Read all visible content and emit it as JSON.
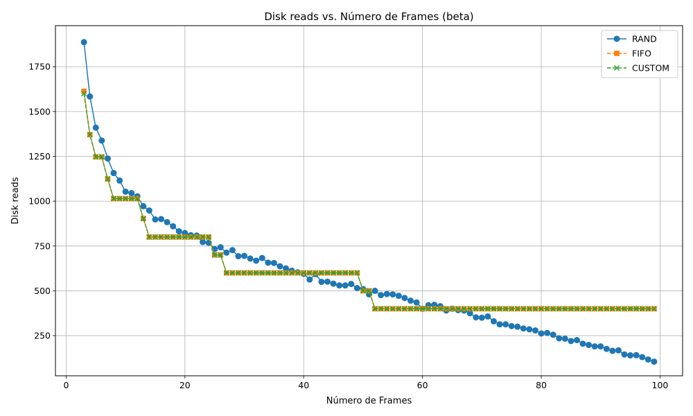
{
  "chart_data": {
    "type": "line",
    "title": "Disk reads vs. Número de Frames (beta)",
    "xlabel": "Número de Frames",
    "ylabel": "Disk reads",
    "xlim": [
      -1.8,
      103.8
    ],
    "ylim": [
      26,
      1979
    ],
    "xticks": [
      0,
      20,
      40,
      60,
      80,
      100
    ],
    "yticks": [
      250,
      500,
      750,
      1000,
      1250,
      1500,
      1750
    ],
    "grid": true,
    "legend_position": "top-right",
    "series": [
      {
        "name": "RAND",
        "color": "#1f77b4",
        "marker": "circle",
        "line": "solid",
        "x": [
          3,
          4,
          5,
          6,
          7,
          8,
          9,
          10,
          11,
          12,
          13,
          14,
          15,
          16,
          17,
          18,
          19,
          20,
          21,
          22,
          23,
          24,
          25,
          26,
          27,
          28,
          29,
          30,
          31,
          32,
          33,
          34,
          35,
          36,
          37,
          38,
          39,
          40,
          41,
          42,
          43,
          44,
          45,
          46,
          47,
          48,
          49,
          50,
          51,
          52,
          53,
          54,
          55,
          56,
          57,
          58,
          59,
          60,
          61,
          62,
          63,
          64,
          65,
          66,
          67,
          68,
          69,
          70,
          71,
          72,
          73,
          74,
          75,
          76,
          77,
          78,
          79,
          80,
          81,
          82,
          83,
          84,
          85,
          86,
          87,
          88,
          89,
          90,
          91,
          92,
          93,
          94,
          95,
          96,
          97,
          98,
          99
        ],
        "y": [
          1887,
          1584,
          1410,
          1338,
          1238,
          1157,
          1115,
          1053,
          1045,
          1027,
          972,
          948,
          898,
          900,
          883,
          860,
          832,
          822,
          810,
          808,
          772,
          768,
          733,
          743,
          713,
          727,
          693,
          695,
          680,
          668,
          683,
          657,
          655,
          637,
          625,
          612,
          603,
          595,
          563,
          593,
          550,
          551,
          540,
          530,
          530,
          538,
          515,
          510,
          480,
          500,
          476,
          482,
          480,
          472,
          460,
          445,
          435,
          400,
          420,
          422,
          414,
          390,
          400,
          392,
          390,
          375,
          352,
          350,
          357,
          330,
          313,
          313,
          303,
          300,
          290,
          285,
          279,
          262,
          265,
          255,
          235,
          233,
          220,
          225,
          205,
          198,
          190,
          190,
          176,
          165,
          168,
          145,
          140,
          141,
          130,
          117,
          105
        ]
      },
      {
        "name": "FIFO",
        "color": "#ff7f0e",
        "marker": "square",
        "line": "dashed",
        "x": [
          3,
          4,
          5,
          6,
          7,
          8,
          9,
          10,
          11,
          12,
          13,
          14,
          15,
          16,
          17,
          18,
          19,
          20,
          21,
          22,
          23,
          24,
          25,
          26,
          27,
          28,
          29,
          30,
          31,
          32,
          33,
          34,
          35,
          36,
          37,
          38,
          39,
          40,
          41,
          42,
          43,
          44,
          45,
          46,
          47,
          48,
          49,
          50,
          51,
          52,
          53,
          54,
          55,
          56,
          57,
          58,
          59,
          60,
          61,
          62,
          63,
          64,
          65,
          66,
          67,
          68,
          69,
          70,
          71,
          72,
          73,
          74,
          75,
          76,
          77,
          78,
          79,
          80,
          81,
          82,
          83,
          84,
          85,
          86,
          87,
          88,
          89,
          90,
          91,
          92,
          93,
          94,
          95,
          96,
          97,
          98,
          99
        ],
        "y": [
          1613,
          1371,
          1247,
          1247,
          1124,
          1014,
          1014,
          1014,
          1014,
          1014,
          903,
          800,
          800,
          800,
          800,
          800,
          800,
          800,
          800,
          800,
          800,
          800,
          700,
          700,
          600,
          600,
          600,
          600,
          600,
          600,
          600,
          600,
          600,
          600,
          600,
          600,
          600,
          600,
          600,
          600,
          600,
          600,
          600,
          600,
          600,
          600,
          600,
          500,
          500,
          400,
          400,
          400,
          400,
          400,
          400,
          400,
          400,
          400,
          400,
          400,
          400,
          400,
          400,
          400,
          400,
          400,
          400,
          400,
          400,
          400,
          400,
          400,
          400,
          400,
          400,
          400,
          400,
          400,
          400,
          400,
          400,
          400,
          400,
          400,
          400,
          400,
          400,
          400,
          400,
          400,
          400,
          400,
          400,
          400,
          400,
          400,
          400
        ]
      },
      {
        "name": "CUSTOM",
        "color": "#2ca02c",
        "marker": "x",
        "line": "dashed",
        "x": [
          3,
          4,
          5,
          6,
          7,
          8,
          9,
          10,
          11,
          12,
          13,
          14,
          15,
          16,
          17,
          18,
          19,
          20,
          21,
          22,
          23,
          24,
          25,
          26,
          27,
          28,
          29,
          30,
          31,
          32,
          33,
          34,
          35,
          36,
          37,
          38,
          39,
          40,
          41,
          42,
          43,
          44,
          45,
          46,
          47,
          48,
          49,
          50,
          51,
          52,
          53,
          54,
          55,
          56,
          57,
          58,
          59,
          60,
          61,
          62,
          63,
          64,
          65,
          66,
          67,
          68,
          69,
          70,
          71,
          72,
          73,
          74,
          75,
          76,
          77,
          78,
          79,
          80,
          81,
          82,
          83,
          84,
          85,
          86,
          87,
          88,
          89,
          90,
          91,
          92,
          93,
          94,
          95,
          96,
          97,
          98,
          99
        ],
        "y": [
          1600,
          1371,
          1247,
          1247,
          1124,
          1014,
          1014,
          1014,
          1014,
          1014,
          903,
          800,
          800,
          800,
          800,
          800,
          800,
          800,
          800,
          800,
          800,
          800,
          700,
          700,
          600,
          600,
          600,
          600,
          600,
          600,
          600,
          600,
          600,
          600,
          600,
          600,
          600,
          600,
          600,
          600,
          600,
          600,
          600,
          600,
          600,
          600,
          600,
          500,
          500,
          400,
          400,
          400,
          400,
          400,
          400,
          400,
          400,
          400,
          400,
          400,
          400,
          400,
          400,
          400,
          400,
          400,
          400,
          400,
          400,
          400,
          400,
          400,
          400,
          400,
          400,
          400,
          400,
          400,
          400,
          400,
          400,
          400,
          400,
          400,
          400,
          400,
          400,
          400,
          400,
          400,
          400,
          400,
          400,
          400,
          400,
          400,
          400
        ]
      }
    ]
  }
}
